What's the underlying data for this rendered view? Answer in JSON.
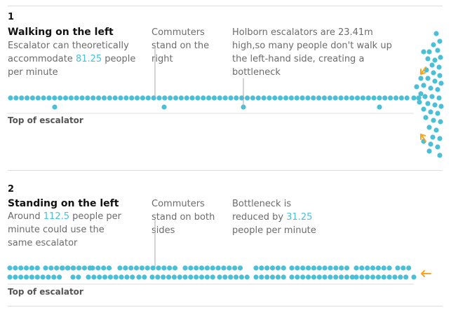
{
  "colors": {
    "dot": "#4bbfd6",
    "arrow": "#f5a623",
    "rule": "#dcdcdc",
    "line": "#aaaaaa"
  },
  "panel1": {
    "number": "1",
    "heading": "Walking on the left",
    "desc_pre": "Escalator can theoretically accommodate ",
    "desc_value": "81.25",
    "desc_post": " people per minute",
    "annotation1": "Commuters stand on the right",
    "annotation2": "Holborn escalators are 23.41m high,so many people don't walk up the left-hand side, creating a bottleneck",
    "axis_label": "Top of escalator"
  },
  "panel2": {
    "number": "2",
    "heading": "Standing on the left",
    "desc_pre": "Around ",
    "desc_value": "112.5",
    "desc_post": " people per minute could use the same escalator",
    "annotation1": "Commuters stand on both sides",
    "annotation2_pre": "Bottleneck is reduced by ",
    "annotation2_value": "31.25",
    "annotation2_post": " people per minute",
    "axis_label": "Top of escalator"
  }
}
